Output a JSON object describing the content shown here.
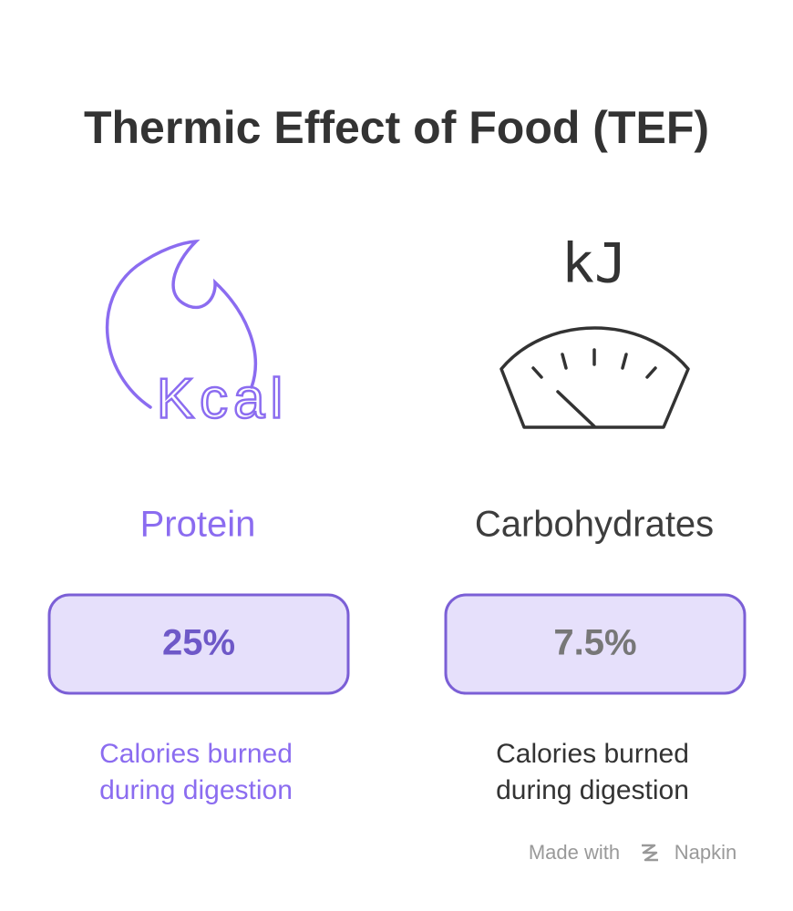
{
  "title": "Thermic Effect of Food (TEF)",
  "items": [
    {
      "icon_text": "Kcal",
      "label": "Protein",
      "value": "25%",
      "description": [
        "Calories burned",
        "during digestion"
      ]
    },
    {
      "icon_text": "kJ",
      "label": "Carbohydrates",
      "value": "7.5%",
      "description": [
        "Calories burned",
        "during digestion"
      ]
    }
  ],
  "footer": {
    "prefix": "Made with",
    "brand": "Napkin"
  }
}
